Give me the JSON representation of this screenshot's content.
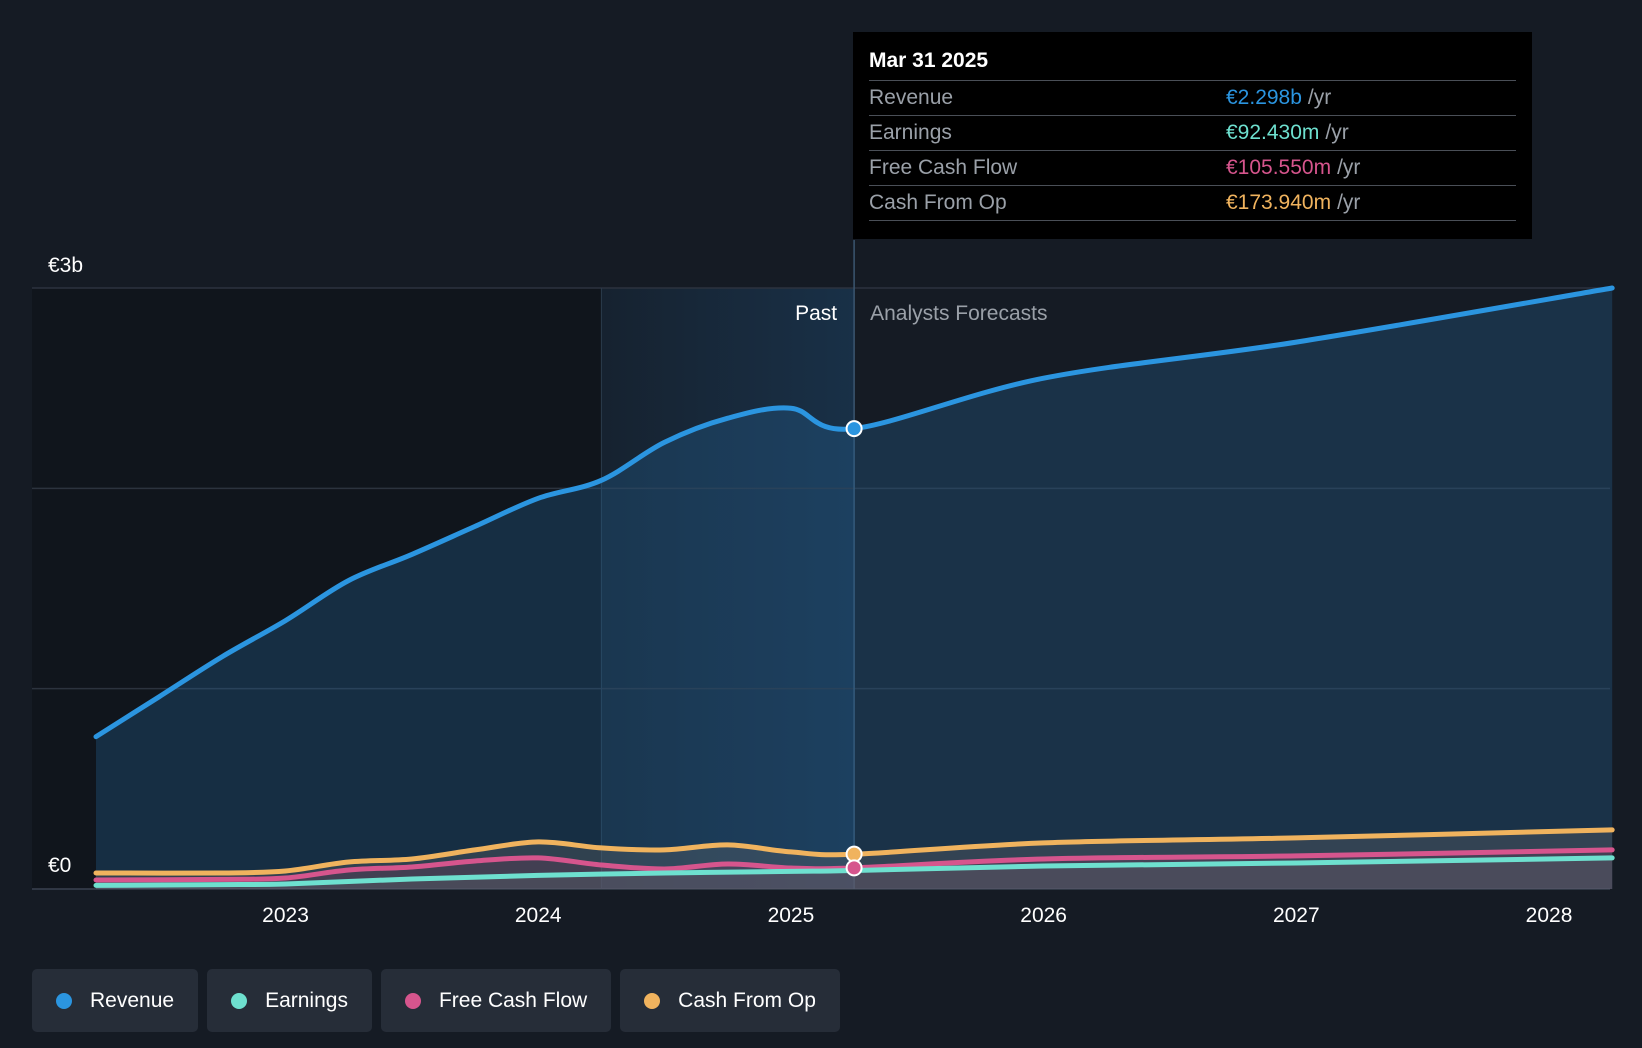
{
  "chart_data": {
    "type": "area",
    "currency_axis": {
      "top_label": "€3b",
      "bottom_label": "€0",
      "ylim": [
        0,
        3000
      ]
    },
    "x_ticks": [
      "2023",
      "2024",
      "2025",
      "2026",
      "2027",
      "2028"
    ],
    "x_range": [
      2022.25,
      2028.25
    ],
    "divider_x": 2025.25,
    "shade_start_x": 2024.25,
    "past_label": "Past",
    "forecast_label": "Analysts Forecasts",
    "colors": {
      "revenue": "#2b95e0",
      "earnings": "#6ee0cf",
      "fcf": "#d6558d",
      "cfo": "#f0b35e"
    },
    "series": [
      {
        "key": "revenue",
        "name": "Revenue",
        "x": [
          2022.25,
          2022.5,
          2022.75,
          2023.0,
          2023.25,
          2023.5,
          2023.75,
          2024.0,
          2024.25,
          2024.5,
          2024.75,
          2025.0,
          2025.25,
          2026.0,
          2027.0,
          2028.25
        ],
        "values": [
          760,
          960,
          1160,
          1340,
          1540,
          1670,
          1810,
          1950,
          2040,
          2230,
          2350,
          2400,
          2298,
          2550,
          2730,
          3000
        ]
      },
      {
        "key": "earnings",
        "name": "Earnings",
        "x": [
          2022.25,
          2022.75,
          2023.0,
          2023.5,
          2024.0,
          2024.5,
          2025.0,
          2025.25,
          2026.0,
          2027.0,
          2028.25
        ],
        "values": [
          18,
          22,
          25,
          50,
          68,
          80,
          88,
          92.43,
          115,
          130,
          155
        ]
      },
      {
        "key": "fcf",
        "name": "Free Cash Flow",
        "x": [
          2022.25,
          2022.75,
          2023.0,
          2023.25,
          2023.5,
          2023.75,
          2024.0,
          2024.25,
          2024.5,
          2024.75,
          2025.0,
          2025.25,
          2026.0,
          2027.0,
          2028.25
        ],
        "values": [
          45,
          48,
          55,
          95,
          110,
          140,
          155,
          120,
          100,
          125,
          105,
          105.55,
          150,
          165,
          195
        ]
      },
      {
        "key": "cfo",
        "name": "Cash From Op",
        "x": [
          2022.25,
          2022.75,
          2023.0,
          2023.25,
          2023.5,
          2023.75,
          2024.0,
          2024.25,
          2024.5,
          2024.75,
          2025.0,
          2025.25,
          2026.0,
          2027.0,
          2028.25
        ],
        "values": [
          80,
          80,
          90,
          135,
          150,
          195,
          235,
          205,
          195,
          220,
          185,
          173.94,
          230,
          255,
          295
        ]
      }
    ]
  },
  "tooltip": {
    "date": "Mar 31 2025",
    "rows": [
      {
        "label": "Revenue",
        "value": "€2.298b",
        "unit": "/yr"
      },
      {
        "label": "Earnings",
        "value": "€92.430m",
        "unit": "/yr"
      },
      {
        "label": "Free Cash Flow",
        "value": "€105.550m",
        "unit": "/yr"
      },
      {
        "label": "Cash From Op",
        "value": "€173.940m",
        "unit": "/yr"
      }
    ]
  },
  "legend": [
    {
      "label": "Revenue"
    },
    {
      "label": "Earnings"
    },
    {
      "label": "Free Cash Flow"
    },
    {
      "label": "Cash From Op"
    }
  ]
}
